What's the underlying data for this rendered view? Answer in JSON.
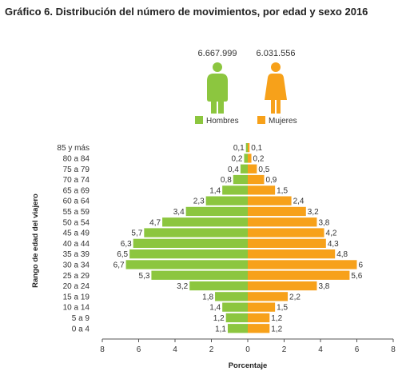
{
  "title": "Gráfico 6. Distribución del número de movimientos, por edad y sexo 2016",
  "chart_data": {
    "type": "bar",
    "orientation": "horizontal",
    "layout": "population-pyramid",
    "title": "Gráfico 6. Distribución del número de movimientos, por edad y sexo 2016",
    "xlabel": "Porcentaje",
    "ylabel": "Rango de edad del viajero",
    "xlim": [
      -8,
      8
    ],
    "xticks": [
      "8",
      "6",
      "4",
      "2",
      "0",
      "2",
      "4",
      "6",
      "8"
    ],
    "categories": [
      "85 y más",
      "80 a 84",
      "75 a 79",
      "70 a 74",
      "65 a 69",
      "60 a 64",
      "55 a 59",
      "50 a 54",
      "45 a 49",
      "40 a 44",
      "35 a 39",
      "30 a 34",
      "25 a 29",
      "20 a 24",
      "15 a 19",
      "10 a 14",
      "5 a 9",
      "0 a 4"
    ],
    "series": [
      {
        "name": "Hombres",
        "total": "6.667.999",
        "color": "#8cc63f",
        "side": "left",
        "values": [
          0.1,
          0.2,
          0.4,
          0.8,
          1.4,
          2.3,
          3.4,
          4.7,
          5.7,
          6.3,
          6.5,
          6.7,
          5.3,
          3.2,
          1.8,
          1.4,
          1.2,
          1.1
        ],
        "labels": [
          "0,1",
          "0,2",
          "0,4",
          "0,8",
          "1,4",
          "2,3",
          "3,4",
          "4,7",
          "5,7",
          "6,3",
          "6,5",
          "6,7",
          "5,3",
          "3,2",
          "1,8",
          "1,4",
          "1,2",
          "1,1"
        ]
      },
      {
        "name": "Mujeres",
        "total": "6.031.556",
        "color": "#f7a11a",
        "side": "right",
        "values": [
          0.1,
          0.2,
          0.5,
          0.9,
          1.5,
          2.4,
          3.2,
          3.8,
          4.2,
          4.3,
          4.8,
          6.0,
          5.6,
          3.8,
          2.2,
          1.5,
          1.2,
          1.2
        ],
        "labels": [
          "0,1",
          "0,2",
          "0,5",
          "0,9",
          "1,5",
          "2,4",
          "3,2",
          "3,8",
          "4,2",
          "4,3",
          "4,8",
          "6",
          "5,6",
          "3,8",
          "2,2",
          "1,5",
          "1,2",
          "1,2"
        ]
      }
    ],
    "legend_position": "top",
    "grid": false
  }
}
